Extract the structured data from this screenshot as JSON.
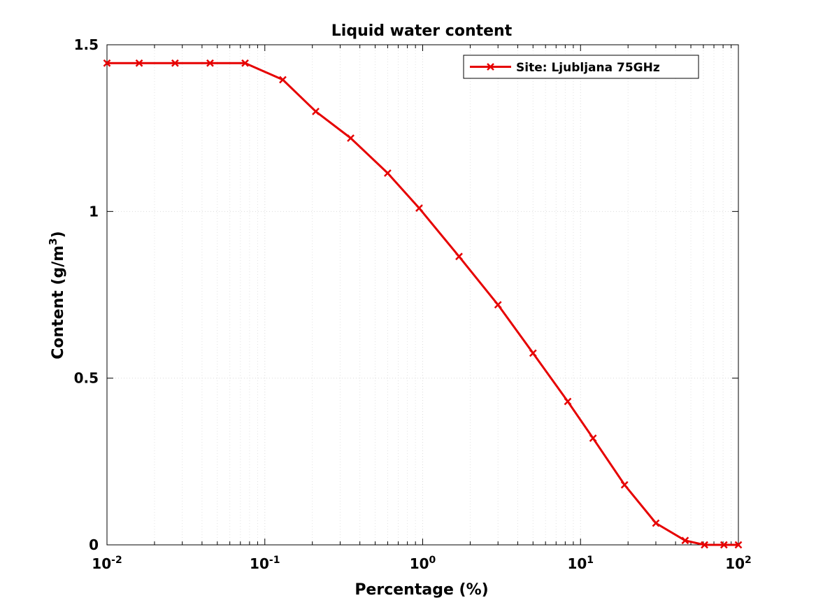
{
  "chart_data": {
    "type": "line",
    "title": "Liquid water content",
    "xlabel": "Percentage (%)",
    "ylabel_main": "Content (g/m",
    "ylabel_sup": "3",
    "ylabel_end": ")",
    "x_scale": "log",
    "xlim": [
      0.01,
      100
    ],
    "ylim": [
      0,
      1.5
    ],
    "grid": true,
    "legend_position": "top-right",
    "x_ticks": [
      {
        "base": "10",
        "exp": "-2",
        "value": 0.01
      },
      {
        "base": "10",
        "exp": "-1",
        "value": 0.1
      },
      {
        "base": "10",
        "exp": "0",
        "value": 1
      },
      {
        "base": "10",
        "exp": "1",
        "value": 10
      },
      {
        "base": "10",
        "exp": "2",
        "value": 100
      }
    ],
    "y_ticks": [
      {
        "label": "0",
        "value": 0
      },
      {
        "label": "0.5",
        "value": 0.5
      },
      {
        "label": "1",
        "value": 1
      },
      {
        "label": "1.5",
        "value": 1.5
      }
    ],
    "series": [
      {
        "name": "Site: Ljubljana 75GHz",
        "color": "#e60000",
        "marker": "x",
        "x": [
          0.01,
          0.016,
          0.027,
          0.045,
          0.075,
          0.13,
          0.21,
          0.35,
          0.6,
          0.95,
          1.7,
          3.0,
          5.0,
          8.3,
          12,
          19,
          30,
          46,
          61,
          81,
          100
        ],
        "y": [
          1.445,
          1.445,
          1.445,
          1.445,
          1.445,
          1.395,
          1.3,
          1.22,
          1.115,
          1.01,
          0.865,
          0.72,
          0.575,
          0.43,
          0.32,
          0.18,
          0.065,
          0.013,
          0.0,
          0.0,
          0.0
        ]
      }
    ]
  }
}
